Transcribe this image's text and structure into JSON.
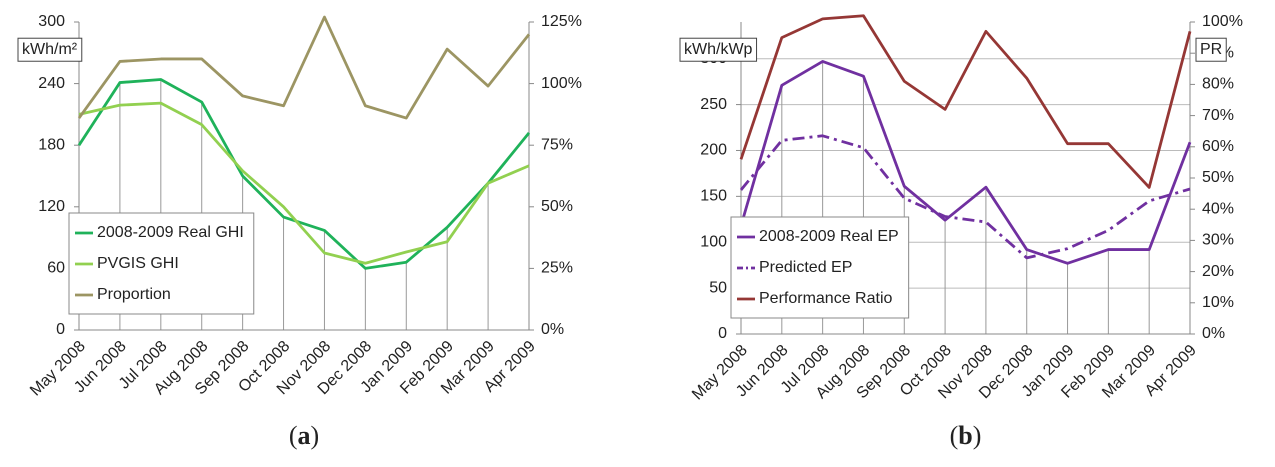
{
  "chart_data": [
    {
      "type": "line",
      "label": "a",
      "ylabel": "kWh/m²",
      "categories": [
        "May 2008",
        "Jun 2008",
        "Jul 2008",
        "Aug 2008",
        "Sep 2008",
        "Oct 2008",
        "Nov 2008",
        "Dec 2008",
        "Jan 2009",
        "Feb 2009",
        "Mar 2009",
        "Apr 2009"
      ],
      "ylim": [
        0,
        300
      ],
      "yticks": [
        0,
        60,
        120,
        180,
        240,
        300
      ],
      "y2lim": [
        0,
        125
      ],
      "y2ticks": [
        {
          "value": 0,
          "label": "0%"
        },
        {
          "value": 25,
          "label": "25%"
        },
        {
          "value": 50,
          "label": "50%"
        },
        {
          "value": 75,
          "label": "75%"
        },
        {
          "value": 100,
          "label": "100%"
        },
        {
          "value": 125,
          "label": "125%"
        }
      ],
      "grid": false,
      "legend": "lower left",
      "series": [
        {
          "name": "2008-2009 Real GHI",
          "color": "#1fb25a",
          "values": [
            180,
            241,
            244,
            222,
            150,
            110,
            97,
            60,
            66,
            100,
            143,
            192
          ]
        },
        {
          "name": "PVGIS GHI",
          "color": "#92d050",
          "values": [
            210,
            219,
            221,
            200,
            155,
            120,
            75,
            65,
            76,
            86,
            143,
            160
          ]
        },
        {
          "name": "Proportion",
          "color": "#9c9563",
          "axis": "y2",
          "values": [
            86,
            109,
            110,
            110,
            95,
            91,
            127,
            91,
            86,
            114,
            99,
            120
          ]
        }
      ]
    },
    {
      "type": "line",
      "label": "b",
      "ylabel": "kWh/kWp",
      "y2label": "PR",
      "categories": [
        "May 2008",
        "Jun 2008",
        "Jul 2008",
        "Aug 2008",
        "Sep 2008",
        "Oct 2008",
        "Nov 2008",
        "Dec 2008",
        "Jan 2009",
        "Feb 2009",
        "Mar 2009",
        "Apr 2009"
      ],
      "ylim": [
        0,
        340
      ],
      "yticks": [
        0,
        50,
        100,
        150,
        200,
        250,
        300
      ],
      "y2lim": [
        0,
        100
      ],
      "y2ticks": [
        {
          "value": 0,
          "label": "0%"
        },
        {
          "value": 10,
          "label": "10%"
        },
        {
          "value": 20,
          "label": "20%"
        },
        {
          "value": 30,
          "label": "30%"
        },
        {
          "value": 40,
          "label": "40%"
        },
        {
          "value": 50,
          "label": "50%"
        },
        {
          "value": 60,
          "label": "60%"
        },
        {
          "value": 70,
          "label": "70%"
        },
        {
          "value": 80,
          "label": "80%"
        },
        {
          "value": 90,
          "label": "90%"
        },
        {
          "value": 100,
          "label": "100%"
        }
      ],
      "grid": true,
      "legend": "lower left",
      "series": [
        {
          "name": "2008-2009 Real EP",
          "color": "#7030a0",
          "values": [
            118,
            271,
            297,
            281,
            161,
            124,
            160,
            92,
            77,
            92,
            92,
            209
          ]
        },
        {
          "name": "Predicted EP",
          "color": "#7030a0",
          "dash": "dashdot",
          "values": [
            157,
            211,
            216,
            203,
            148,
            128,
            122,
            83,
            93,
            113,
            145,
            158
          ]
        },
        {
          "name": "Performance Ratio",
          "color": "#953735",
          "axis": "y2",
          "values": [
            56,
            95,
            101,
            102,
            81,
            72,
            97,
            82,
            61,
            61,
            47,
            97
          ]
        }
      ]
    }
  ]
}
